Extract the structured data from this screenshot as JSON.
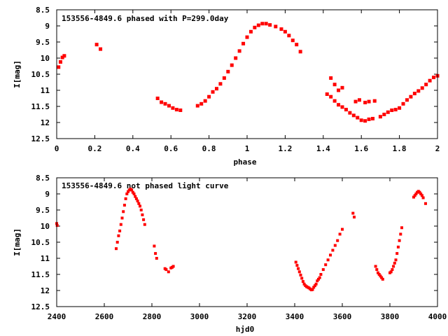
{
  "chart_data": [
    {
      "type": "scatter",
      "title": "153556-4849.6 phased with P=299.0day",
      "xlabel": "phase",
      "ylabel": "I[mag]",
      "xlim": [
        0,
        2
      ],
      "ylim": [
        12.5,
        8.5
      ],
      "y_inverted": true,
      "grid": false,
      "marker_color": "#ff0000",
      "x_ticks": [
        "0",
        "0.2",
        "0.4",
        "0.6",
        "0.8",
        "1",
        "1.2",
        "1.4",
        "1.6",
        "1.8",
        "2"
      ],
      "y_ticks": [
        "8.5",
        "9",
        "9.5",
        "10",
        "10.5",
        "11",
        "11.5",
        "12",
        "12.5"
      ],
      "points": [
        [
          0.01,
          10.28
        ],
        [
          0.02,
          10.12
        ],
        [
          0.03,
          9.98
        ],
        [
          0.04,
          9.93
        ],
        [
          0.21,
          9.58
        ],
        [
          0.23,
          9.72
        ],
        [
          0.53,
          11.25
        ],
        [
          0.55,
          11.37
        ],
        [
          0.57,
          11.42
        ],
        [
          0.59,
          11.48
        ],
        [
          0.61,
          11.55
        ],
        [
          0.63,
          11.6
        ],
        [
          0.65,
          11.62
        ],
        [
          0.74,
          11.48
        ],
        [
          0.76,
          11.42
        ],
        [
          0.78,
          11.33
        ],
        [
          0.8,
          11.2
        ],
        [
          0.82,
          11.05
        ],
        [
          0.84,
          10.95
        ],
        [
          0.86,
          10.8
        ],
        [
          0.88,
          10.62
        ],
        [
          0.9,
          10.42
        ],
        [
          0.92,
          10.22
        ],
        [
          0.94,
          10.0
        ],
        [
          0.96,
          9.78
        ],
        [
          0.98,
          9.55
        ],
        [
          1.0,
          9.35
        ],
        [
          1.02,
          9.18
        ],
        [
          1.04,
          9.05
        ],
        [
          1.06,
          8.98
        ],
        [
          1.08,
          8.93
        ],
        [
          1.1,
          8.93
        ],
        [
          1.12,
          8.97
        ],
        [
          1.15,
          9.02
        ],
        [
          1.18,
          9.1
        ],
        [
          1.2,
          9.18
        ],
        [
          1.22,
          9.3
        ],
        [
          1.24,
          9.45
        ],
        [
          1.26,
          9.58
        ],
        [
          1.28,
          9.8
        ],
        [
          1.42,
          11.12
        ],
        [
          1.44,
          11.2
        ],
        [
          1.46,
          11.33
        ],
        [
          1.48,
          11.45
        ],
        [
          1.5,
          11.52
        ],
        [
          1.52,
          11.6
        ],
        [
          1.54,
          11.7
        ],
        [
          1.56,
          11.78
        ],
        [
          1.58,
          11.85
        ],
        [
          1.6,
          11.93
        ],
        [
          1.62,
          11.95
        ],
        [
          1.64,
          11.9
        ],
        [
          1.66,
          11.88
        ],
        [
          1.44,
          10.62
        ],
        [
          1.46,
          10.82
        ],
        [
          1.48,
          11.0
        ],
        [
          1.5,
          10.92
        ],
        [
          1.57,
          11.35
        ],
        [
          1.59,
          11.3
        ],
        [
          1.62,
          11.38
        ],
        [
          1.64,
          11.35
        ],
        [
          1.67,
          11.33
        ],
        [
          1.7,
          11.82
        ],
        [
          1.72,
          11.75
        ],
        [
          1.74,
          11.68
        ],
        [
          1.76,
          11.62
        ],
        [
          1.78,
          11.6
        ],
        [
          1.8,
          11.55
        ],
        [
          1.82,
          11.42
        ],
        [
          1.84,
          11.3
        ],
        [
          1.86,
          11.2
        ],
        [
          1.88,
          11.1
        ],
        [
          1.9,
          11.02
        ],
        [
          1.92,
          10.93
        ],
        [
          1.94,
          10.82
        ],
        [
          1.96,
          10.7
        ],
        [
          1.98,
          10.6
        ],
        [
          2.0,
          10.55
        ]
      ]
    },
    {
      "type": "scatter",
      "title": "153556-4849.6 not phased light curve",
      "xlabel": "hjd0",
      "ylabel": "I[mag]",
      "xlim": [
        2400,
        4000
      ],
      "ylim": [
        12.5,
        8.5
      ],
      "y_inverted": true,
      "grid": false,
      "marker_color": "#ff0000",
      "x_ticks": [
        "2400",
        "2600",
        "2800",
        "3000",
        "3200",
        "3400",
        "3600",
        "3800",
        "4000"
      ],
      "y_ticks": [
        "8.5",
        "9",
        "9.5",
        "10",
        "10.5",
        "11",
        "11.5",
        "12",
        "12.5"
      ],
      "points": [
        [
          2400,
          9.92
        ],
        [
          2402,
          9.98
        ],
        [
          2650,
          10.7
        ],
        [
          2655,
          10.5
        ],
        [
          2660,
          10.3
        ],
        [
          2665,
          10.15
        ],
        [
          2670,
          9.95
        ],
        [
          2675,
          9.75
        ],
        [
          2680,
          9.55
        ],
        [
          2685,
          9.35
        ],
        [
          2690,
          9.15
        ],
        [
          2695,
          9.0
        ],
        [
          2700,
          8.93
        ],
        [
          2705,
          8.88
        ],
        [
          2710,
          8.85
        ],
        [
          2715,
          8.88
        ],
        [
          2720,
          8.95
        ],
        [
          2725,
          9.0
        ],
        [
          2730,
          9.08
        ],
        [
          2735,
          9.15
        ],
        [
          2740,
          9.22
        ],
        [
          2745,
          9.3
        ],
        [
          2750,
          9.38
        ],
        [
          2755,
          9.5
        ],
        [
          2760,
          9.65
        ],
        [
          2765,
          9.8
        ],
        [
          2770,
          9.95
        ],
        [
          2810,
          10.62
        ],
        [
          2815,
          10.85
        ],
        [
          2820,
          11.0
        ],
        [
          2855,
          11.32
        ],
        [
          2860,
          11.35
        ],
        [
          2870,
          11.42
        ],
        [
          2880,
          11.3
        ],
        [
          2885,
          11.28
        ],
        [
          2890,
          11.25
        ],
        [
          3405,
          11.12
        ],
        [
          3410,
          11.22
        ],
        [
          3415,
          11.32
        ],
        [
          3420,
          11.42
        ],
        [
          3425,
          11.52
        ],
        [
          3430,
          11.62
        ],
        [
          3435,
          11.72
        ],
        [
          3440,
          11.8
        ],
        [
          3445,
          11.85
        ],
        [
          3450,
          11.88
        ],
        [
          3455,
          11.9
        ],
        [
          3460,
          11.92
        ],
        [
          3465,
          11.95
        ],
        [
          3470,
          11.98
        ],
        [
          3475,
          11.97
        ],
        [
          3480,
          11.9
        ],
        [
          3485,
          11.85
        ],
        [
          3490,
          11.8
        ],
        [
          3495,
          11.7
        ],
        [
          3500,
          11.65
        ],
        [
          3505,
          11.6
        ],
        [
          3510,
          11.5
        ],
        [
          3520,
          11.35
        ],
        [
          3530,
          11.2
        ],
        [
          3540,
          11.05
        ],
        [
          3550,
          10.9
        ],
        [
          3560,
          10.75
        ],
        [
          3570,
          10.6
        ],
        [
          3580,
          10.45
        ],
        [
          3590,
          10.25
        ],
        [
          3600,
          10.1
        ],
        [
          3645,
          9.6
        ],
        [
          3650,
          9.72
        ],
        [
          3740,
          11.25
        ],
        [
          3745,
          11.35
        ],
        [
          3750,
          11.45
        ],
        [
          3755,
          11.5
        ],
        [
          3760,
          11.55
        ],
        [
          3765,
          11.6
        ],
        [
          3770,
          11.65
        ],
        [
          3800,
          11.45
        ],
        [
          3805,
          11.42
        ],
        [
          3810,
          11.35
        ],
        [
          3815,
          11.25
        ],
        [
          3820,
          11.15
        ],
        [
          3825,
          11.05
        ],
        [
          3830,
          10.85
        ],
        [
          3835,
          10.65
        ],
        [
          3840,
          10.45
        ],
        [
          3845,
          10.25
        ],
        [
          3850,
          10.05
        ],
        [
          3900,
          9.1
        ],
        [
          3905,
          9.05
        ],
        [
          3910,
          9.0
        ],
        [
          3915,
          8.95
        ],
        [
          3920,
          8.92
        ],
        [
          3925,
          8.95
        ],
        [
          3930,
          9.0
        ],
        [
          3935,
          9.05
        ],
        [
          3940,
          9.12
        ],
        [
          3950,
          9.3
        ]
      ]
    }
  ]
}
